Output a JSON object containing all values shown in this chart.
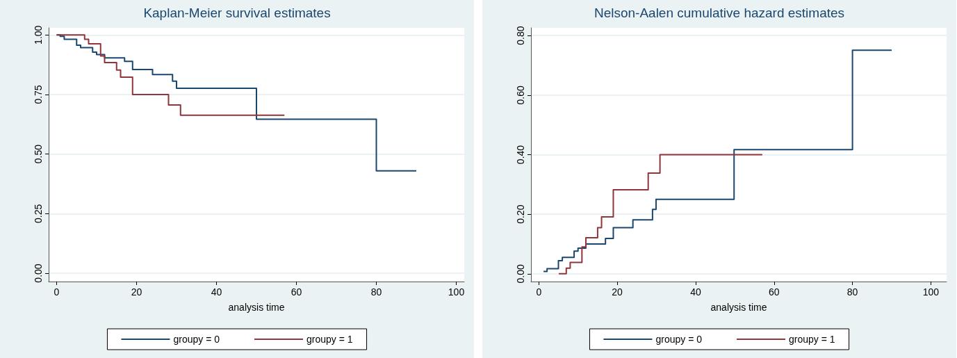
{
  "chart_data": [
    {
      "type": "step",
      "title": "Kaplan-Meier survival estimates",
      "xlabel": "analysis time",
      "xlim": [
        -2,
        102
      ],
      "xticks": [
        0,
        20,
        40,
        60,
        80,
        100
      ],
      "ylim": [
        -0.035,
        1.03
      ],
      "yticks": [
        {
          "value": 0,
          "label": "0.00"
        },
        {
          "value": 0.25,
          "label": "0.25"
        },
        {
          "value": 0.5,
          "label": "0.50"
        },
        {
          "value": 0.75,
          "label": "0.75"
        },
        {
          "value": 1,
          "label": "1.00"
        }
      ],
      "grid": "y",
      "legend": "bottom",
      "series": [
        {
          "name": "groupy = 0",
          "color": "#1a476f",
          "x": [
            0,
            0.9,
            1.9,
            5,
            6,
            9,
            10,
            12,
            17,
            19,
            24,
            29,
            30,
            50,
            80,
            90
          ],
          "values": [
            1,
            0.994,
            0.982,
            0.957,
            0.947,
            0.928,
            0.918,
            0.904,
            0.889,
            0.855,
            0.834,
            0.806,
            0.776,
            0.646,
            0.43,
            0.43
          ]
        },
        {
          "name": "groupy = 1",
          "color": "#90353b",
          "x": [
            0,
            7,
            8,
            11,
            12,
            15,
            16,
            19,
            28,
            31,
            57
          ],
          "values": [
            1,
            0.982,
            0.963,
            0.912,
            0.884,
            0.853,
            0.823,
            0.75,
            0.706,
            0.663,
            0.663
          ]
        }
      ]
    },
    {
      "type": "step",
      "title": "Nelson-Aalen cumulative hazard estimates",
      "xlabel": "analysis time",
      "xlim": [
        -2,
        104
      ],
      "xticks": [
        0,
        20,
        40,
        60,
        80,
        100
      ],
      "ylim": [
        -0.026,
        0.826
      ],
      "yticks": [
        {
          "value": 0,
          "label": "0.00"
        },
        {
          "value": 0.2,
          "label": "0.20"
        },
        {
          "value": 0.4,
          "label": "0.40"
        },
        {
          "value": 0.6,
          "label": "0.60"
        },
        {
          "value": 0.8,
          "label": "0.80"
        }
      ],
      "grid": "y",
      "legend": "bottom",
      "series": [
        {
          "name": "groupy = 0",
          "color": "#1a476f",
          "x": [
            1.2,
            2.1,
            5,
            6,
            9,
            10,
            12,
            17,
            19,
            24,
            29,
            29.9,
            49.8,
            80,
            90
          ],
          "values": [
            0.008,
            0.017,
            0.044,
            0.055,
            0.076,
            0.086,
            0.1,
            0.119,
            0.155,
            0.181,
            0.216,
            0.25,
            0.417,
            0.751,
            0.751
          ]
        },
        {
          "name": "groupy = 1",
          "color": "#90353b",
          "x": [
            5.1,
            7,
            8,
            11,
            12,
            15,
            16,
            19,
            27.9,
            30.9,
            57
          ],
          "values": [
            0,
            0.019,
            0.038,
            0.09,
            0.121,
            0.155,
            0.191,
            0.282,
            0.338,
            0.4,
            0.4
          ]
        }
      ]
    }
  ]
}
